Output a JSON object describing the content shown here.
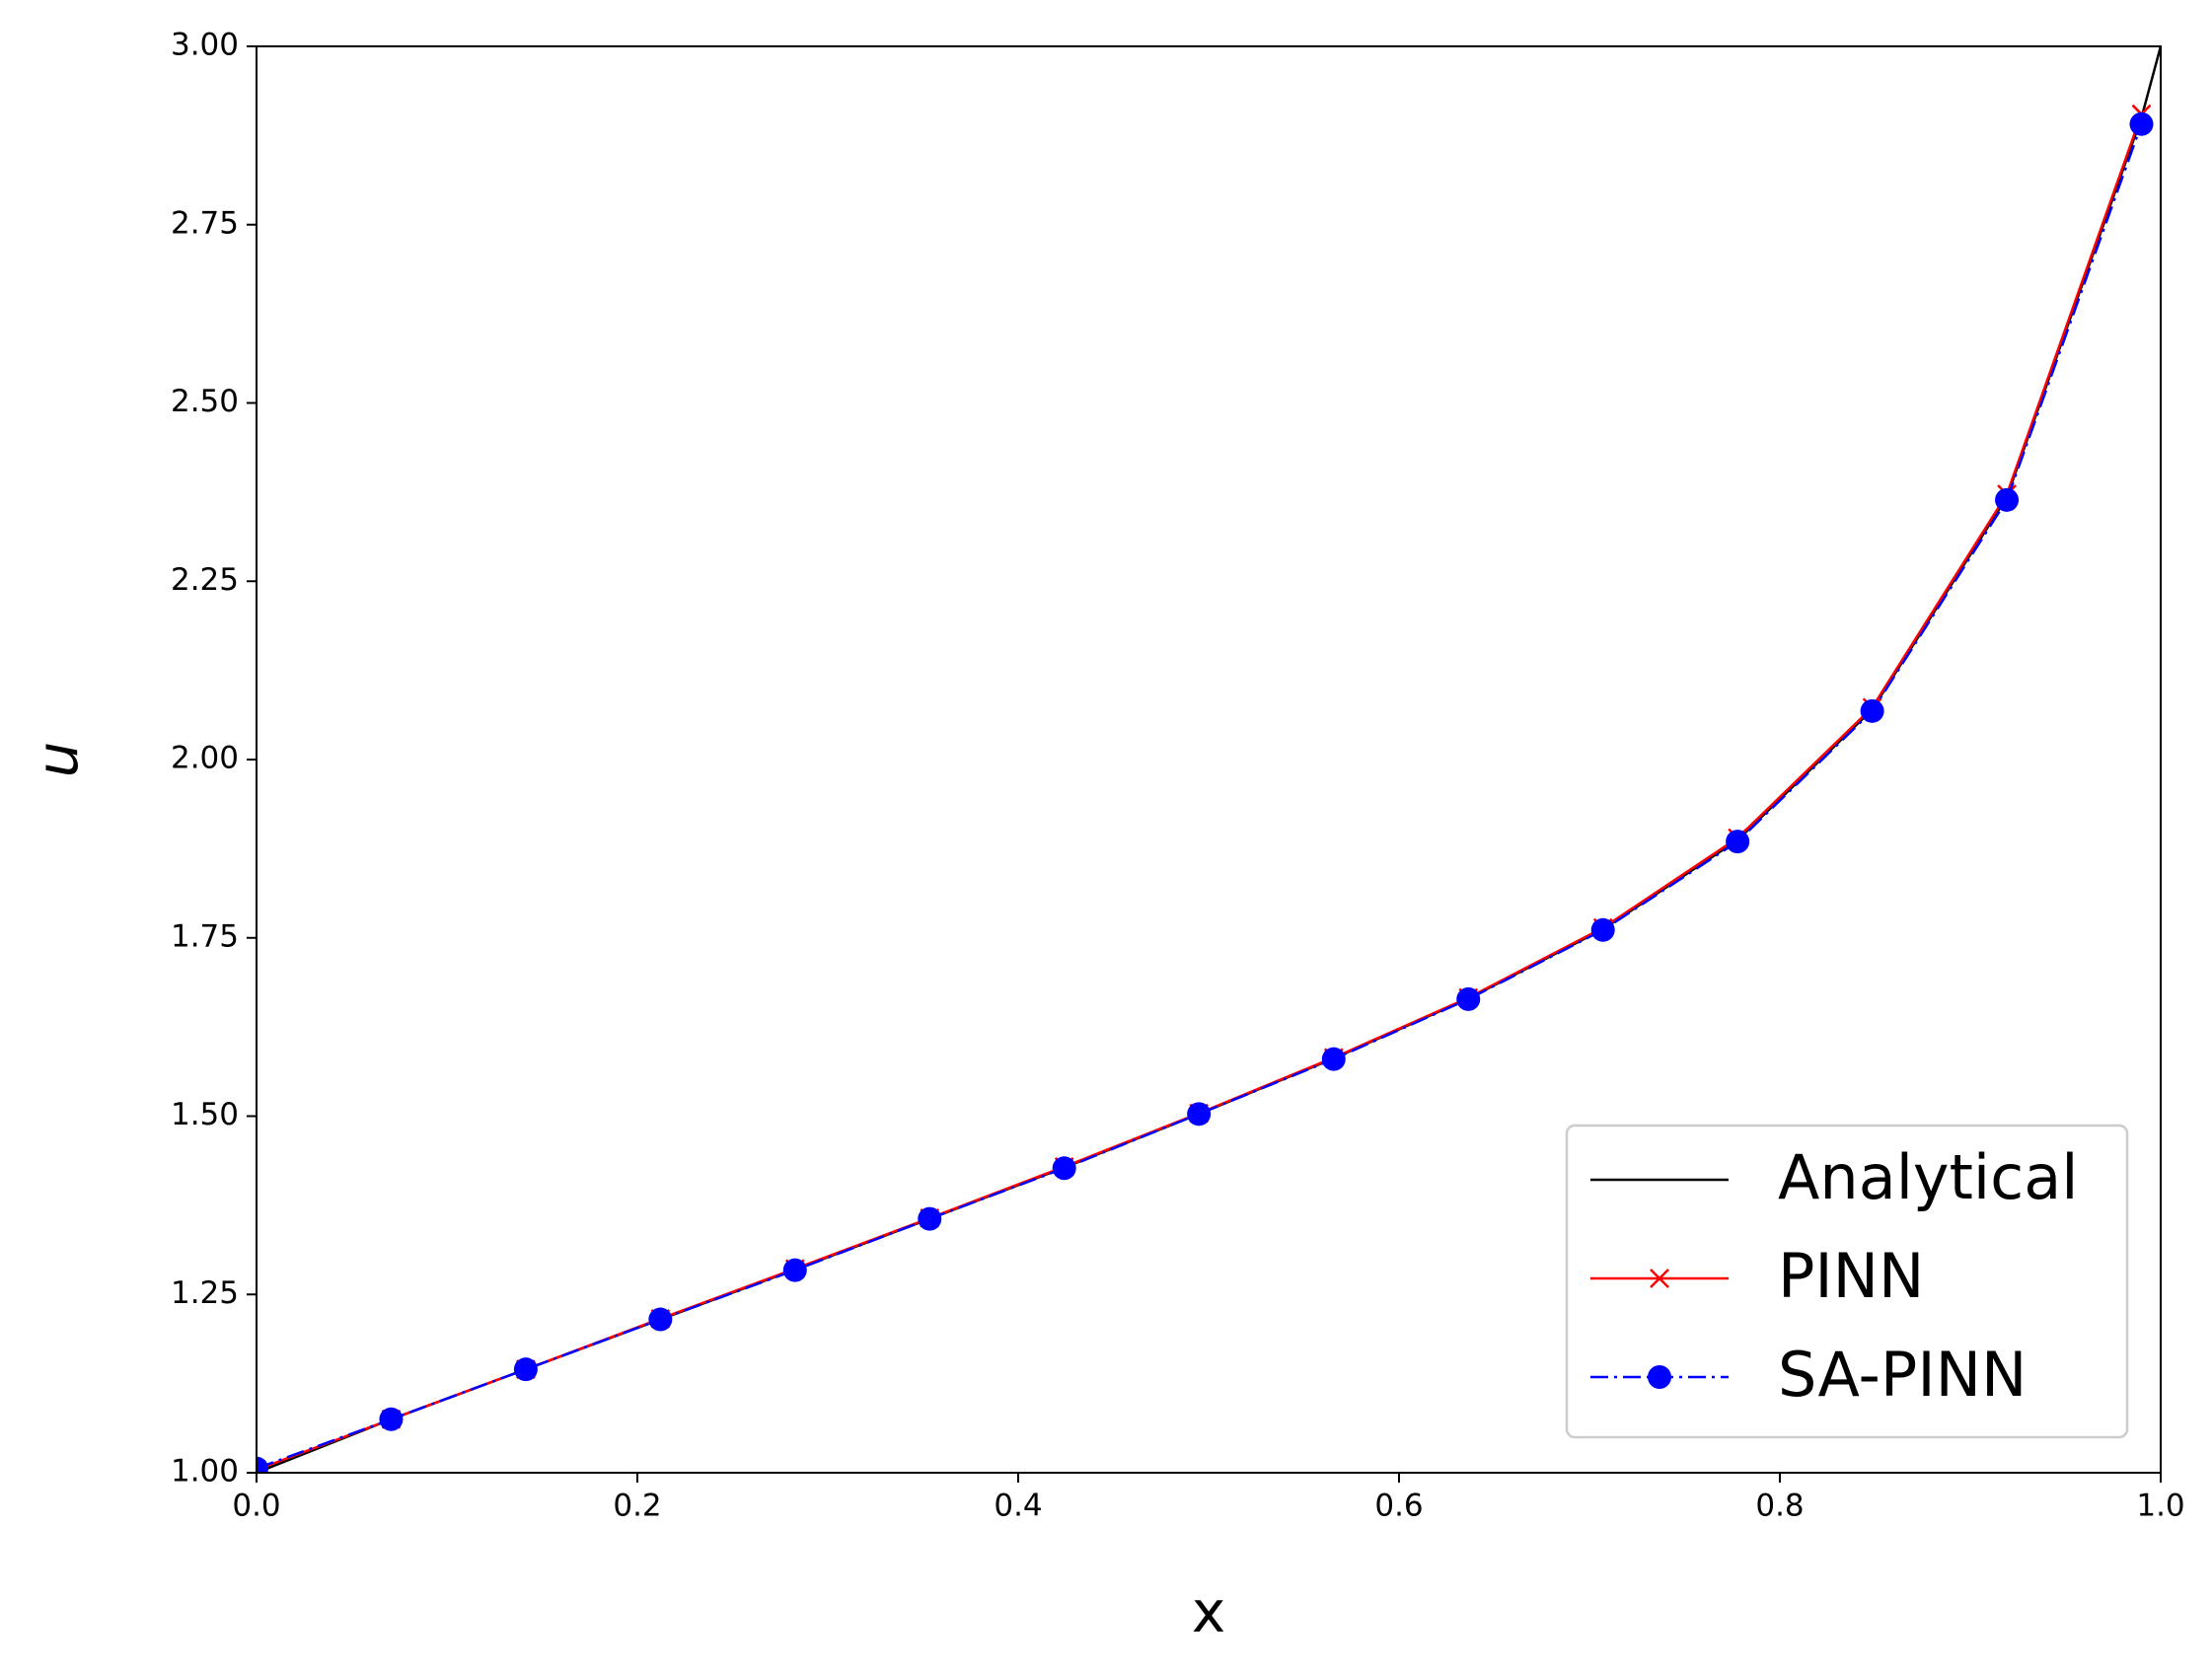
{
  "chart_data": {
    "type": "line",
    "xlabel": "x",
    "ylabel": "u",
    "xlim": [
      0,
      1
    ],
    "ylim": [
      1,
      3
    ],
    "xticks": [
      {
        "value": 0,
        "label": "0.0"
      },
      {
        "value": 0.2,
        "label": "0.2"
      },
      {
        "value": 0.4,
        "label": "0.4"
      },
      {
        "value": 0.6,
        "label": "0.6"
      },
      {
        "value": 0.8,
        "label": "0.8"
      },
      {
        "value": 1,
        "label": "1.0"
      }
    ],
    "yticks": [
      {
        "value": 1,
        "label": "1.00"
      },
      {
        "value": 1.25,
        "label": "1.25"
      },
      {
        "value": 1.5,
        "label": "1.50"
      },
      {
        "value": 1.75,
        "label": "1.75"
      },
      {
        "value": 2,
        "label": "2.00"
      },
      {
        "value": 2.25,
        "label": "2.25"
      },
      {
        "value": 2.5,
        "label": "2.50"
      },
      {
        "value": 2.75,
        "label": "2.75"
      },
      {
        "value": 3,
        "label": "3.00"
      }
    ],
    "grid": false,
    "legend": "lower right",
    "series": [
      {
        "name": "Analytical",
        "color": "#000000",
        "linestyle": "solid",
        "marker": "none",
        "x": [
          0,
          0.0707,
          0.1414,
          0.2121,
          0.2828,
          0.3535,
          0.4242,
          0.4949,
          0.5657,
          0.6364,
          0.7071,
          0.7778,
          0.8485,
          0.9192,
          0.9899,
          1
        ],
        "values": [
          1.0,
          1.075,
          1.145,
          1.215,
          1.285,
          1.356,
          1.428,
          1.503,
          1.581,
          1.665,
          1.762,
          1.887,
          2.07,
          2.368,
          2.9,
          3.0
        ]
      },
      {
        "name": "PINN",
        "color": "#ff0000",
        "linestyle": "solid",
        "marker": "x",
        "x": [
          0,
          0.0707,
          0.1414,
          0.2121,
          0.2828,
          0.3535,
          0.4242,
          0.4949,
          0.5657,
          0.6364,
          0.7071,
          0.7778,
          0.8485,
          0.9192,
          0.9899
        ],
        "values": [
          1.004,
          1.075,
          1.145,
          1.216,
          1.286,
          1.357,
          1.429,
          1.504,
          1.582,
          1.666,
          1.764,
          1.89,
          2.073,
          2.372,
          2.905
        ]
      },
      {
        "name": "SA-PINN",
        "color": "#0000ff",
        "linestyle": "dashdot",
        "marker": "o",
        "x": [
          0,
          0.0707,
          0.1414,
          0.2121,
          0.2828,
          0.3535,
          0.4242,
          0.4949,
          0.5657,
          0.6364,
          0.7071,
          0.7778,
          0.8485,
          0.9192,
          0.9899
        ],
        "values": [
          1.006,
          1.075,
          1.145,
          1.215,
          1.284,
          1.356,
          1.427,
          1.503,
          1.58,
          1.664,
          1.761,
          1.885,
          2.068,
          2.364,
          2.891
        ]
      }
    ]
  }
}
